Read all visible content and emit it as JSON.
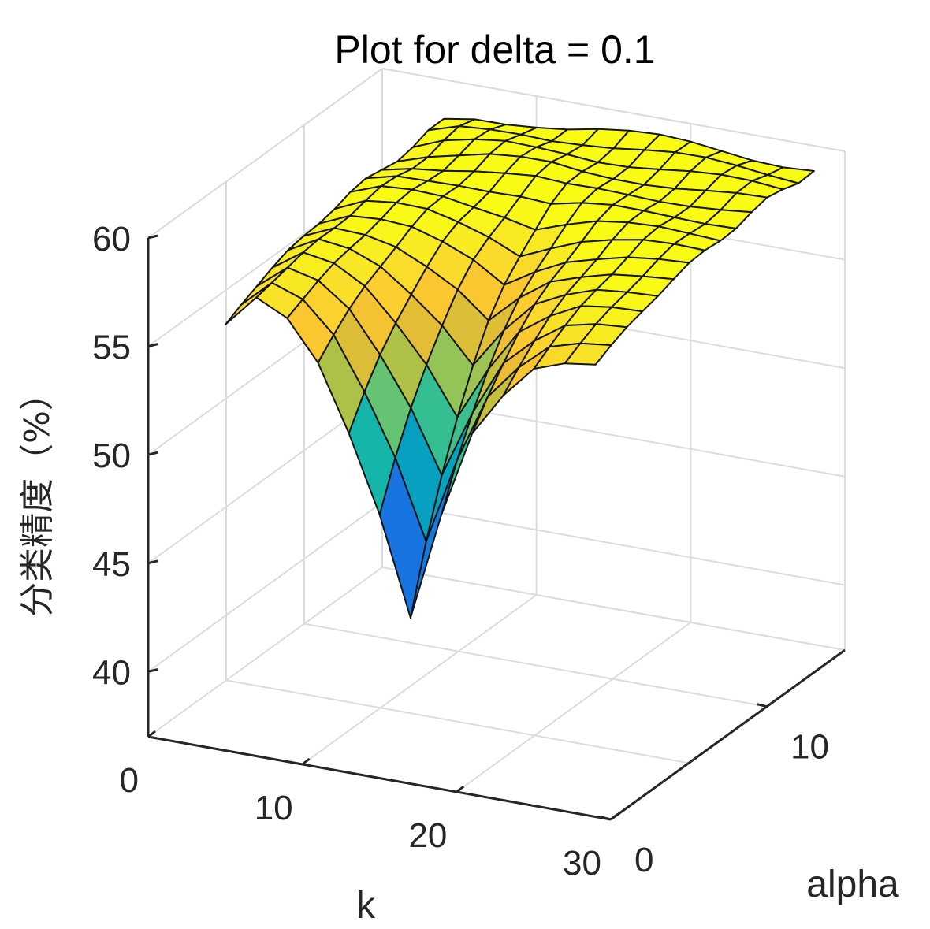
{
  "chart_data": {
    "type": "surface",
    "title": "Plot for delta = 0.1",
    "xlabel": "k",
    "ylabel": "alpha",
    "zlabel": "分类精度（%）",
    "xlim": [
      0,
      30
    ],
    "ylim": [
      0,
      15
    ],
    "zlim": [
      37,
      60
    ],
    "x_ticks": [
      "0",
      "10",
      "20",
      "30"
    ],
    "y_ticks": [
      "0",
      "10"
    ],
    "z_ticks": [
      "40",
      "45",
      "50",
      "55",
      "60"
    ],
    "grid": true,
    "colormap": "parula",
    "k": [
      4,
      6,
      8,
      10,
      12,
      14,
      16,
      18,
      20,
      22,
      24,
      26,
      28
    ],
    "alpha": [
      1,
      2,
      3,
      4,
      5,
      6,
      7,
      8,
      9,
      10,
      11,
      12,
      13,
      14,
      15
    ],
    "accuracy_at_alpha_1": [
      56.0,
      57.5,
      56.8,
      55.0,
      52.0,
      48.5,
      44.0,
      49.0,
      53.0,
      55.0,
      56.5,
      57.0,
      57.2
    ],
    "accuracy_at_alpha_15": [
      58.0,
      58.4,
      58.6,
      58.8,
      58.9,
      59.0,
      59.0,
      59.0,
      59.0,
      59.0,
      59.0,
      59.0,
      59.0
    ]
  }
}
